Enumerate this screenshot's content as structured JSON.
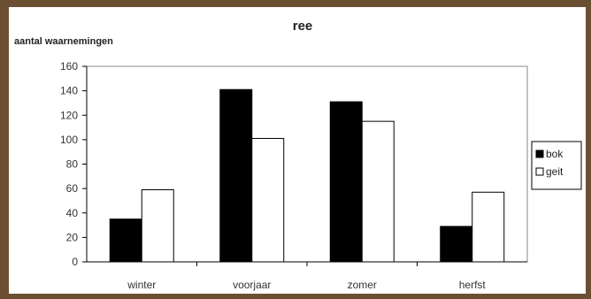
{
  "chart_data": {
    "type": "bar",
    "title": "ree",
    "ylabel": "aantal waarnemingen",
    "xlabel": "",
    "categories": [
      "winter",
      "voorjaar",
      "zomer",
      "herfst"
    ],
    "series": [
      {
        "name": "bok",
        "values": [
          35,
          141,
          131,
          29
        ],
        "color": "#000000"
      },
      {
        "name": "geit",
        "values": [
          59,
          101,
          115,
          57
        ],
        "color": "#ffffff"
      }
    ],
    "ylim": [
      0,
      160
    ],
    "yticks": [
      0,
      20,
      40,
      60,
      80,
      100,
      120,
      140,
      160
    ],
    "grid": false,
    "legend": "right"
  }
}
